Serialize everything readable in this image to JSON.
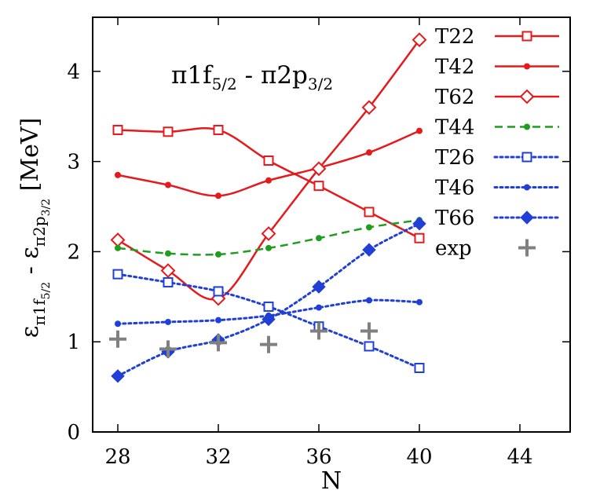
{
  "chart_data": {
    "type": "line",
    "title": "π1f5/2 - π2p3/2",
    "title_parts": {
      "pi1": "π1f",
      "sub1": "5/2",
      "mid": " - π2p",
      "sub2": "3/2"
    },
    "xlabel": "N",
    "ylabel": "επ1f5/2 - επ2p3/2 [MeV]",
    "ylabel_parts": {
      "eps1": "ε",
      "sub1": "π1f",
      "subsub1": "5/2",
      "mid": " - ε",
      "sub2": "π2p",
      "subsub2": "3/2",
      "unit": " [MeV]"
    },
    "xlim": [
      27,
      46
    ],
    "ylim": [
      0,
      4.6
    ],
    "x_ticks": [
      "28",
      "32",
      "36",
      "40",
      "44"
    ],
    "y_ticks": [
      "0",
      "1",
      "2",
      "3",
      "4"
    ],
    "legend_position": "top-right",
    "series": [
      {
        "name": "T22",
        "color": "#e41a1c",
        "marker": "open-square",
        "dash": "solid",
        "x": [
          28,
          30,
          32,
          34,
          36,
          38,
          40
        ],
        "y": [
          3.35,
          3.33,
          3.35,
          3.01,
          2.73,
          2.44,
          2.15
        ]
      },
      {
        "name": "T42",
        "color": "#e41a1c",
        "marker": "dot",
        "dash": "solid",
        "x": [
          28,
          30,
          32,
          34,
          36,
          38,
          40
        ],
        "y": [
          2.85,
          2.74,
          2.62,
          2.79,
          2.93,
          3.1,
          3.34
        ]
      },
      {
        "name": "T62",
        "color": "#e41a1c",
        "marker": "open-diamond",
        "dash": "solid",
        "x": [
          28,
          30,
          32,
          34,
          36,
          38,
          40
        ],
        "y": [
          2.13,
          1.79,
          1.48,
          2.2,
          2.92,
          3.6,
          4.35
        ]
      },
      {
        "name": "T44",
        "color": "#1f9d1f",
        "marker": "dot",
        "dash": "dashed",
        "x": [
          28,
          30,
          32,
          34,
          36,
          38,
          40
        ],
        "y": [
          2.04,
          1.98,
          1.97,
          2.04,
          2.15,
          2.27,
          2.35
        ]
      },
      {
        "name": "T26",
        "color": "#1f3fd6",
        "marker": "open-square",
        "dash": "dotted",
        "x": [
          28,
          30,
          32,
          34,
          36,
          38,
          40
        ],
        "y": [
          1.75,
          1.66,
          1.56,
          1.39,
          1.17,
          0.95,
          0.71
        ]
      },
      {
        "name": "T46",
        "color": "#1f3fd6",
        "marker": "dot",
        "dash": "dotted",
        "x": [
          28,
          30,
          32,
          34,
          36,
          38,
          40
        ],
        "y": [
          1.2,
          1.22,
          1.24,
          1.29,
          1.38,
          1.46,
          1.44
        ]
      },
      {
        "name": "T66",
        "color": "#1f3fd6",
        "marker": "filled-diamond",
        "dash": "dotted",
        "x": [
          28,
          30,
          32,
          34,
          36,
          38,
          40
        ],
        "y": [
          0.62,
          0.89,
          1.02,
          1.25,
          1.61,
          2.02,
          2.31
        ]
      },
      {
        "name": "exp",
        "color": "#808080",
        "marker": "plus",
        "dash": "none",
        "x": [
          28,
          30,
          32,
          34,
          36,
          38
        ],
        "y": [
          1.03,
          0.92,
          0.99,
          0.97,
          1.12,
          1.12
        ]
      }
    ]
  }
}
